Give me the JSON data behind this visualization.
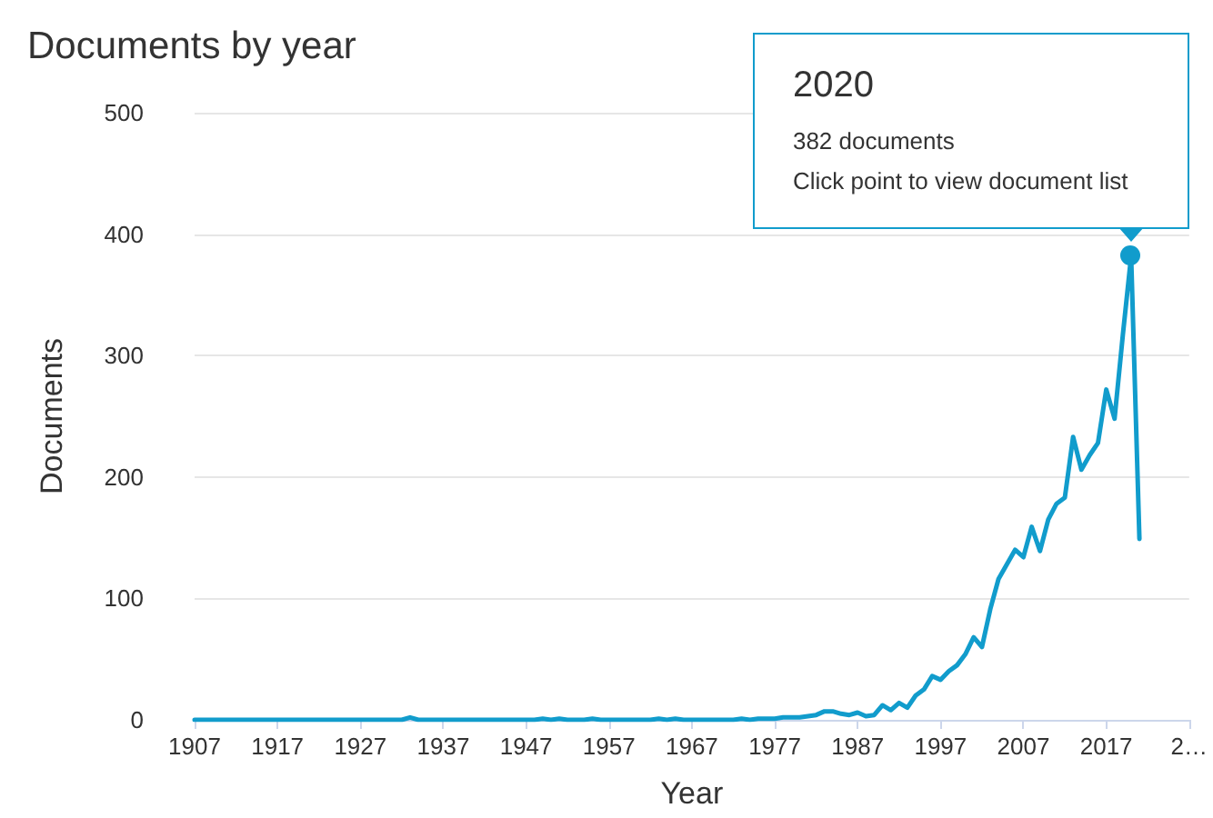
{
  "chart_data": {
    "type": "line",
    "title": "Documents by year",
    "xlabel": "Year",
    "ylabel": "Documents",
    "x": [
      1907,
      1908,
      1909,
      1910,
      1911,
      1912,
      1913,
      1914,
      1915,
      1916,
      1917,
      1918,
      1919,
      1920,
      1921,
      1922,
      1923,
      1924,
      1925,
      1926,
      1927,
      1928,
      1929,
      1930,
      1931,
      1932,
      1933,
      1934,
      1935,
      1936,
      1937,
      1938,
      1939,
      1940,
      1941,
      1942,
      1943,
      1944,
      1945,
      1946,
      1947,
      1948,
      1949,
      1950,
      1951,
      1952,
      1953,
      1954,
      1955,
      1956,
      1957,
      1958,
      1959,
      1960,
      1961,
      1962,
      1963,
      1964,
      1965,
      1966,
      1967,
      1968,
      1969,
      1970,
      1971,
      1972,
      1973,
      1974,
      1975,
      1976,
      1977,
      1978,
      1979,
      1980,
      1981,
      1982,
      1983,
      1984,
      1985,
      1986,
      1987,
      1988,
      1989,
      1990,
      1991,
      1992,
      1993,
      1994,
      1995,
      1996,
      1997,
      1998,
      1999,
      2000,
      2001,
      2002,
      2003,
      2004,
      2005,
      2006,
      2007,
      2008,
      2009,
      2010,
      2011,
      2012,
      2013,
      2014,
      2015,
      2016,
      2017,
      2018,
      2019,
      2020,
      2021
    ],
    "series": [
      {
        "color": "#119ccc",
        "values": [
          0,
          0,
          0,
          0,
          0,
          0,
          0,
          0,
          0,
          0,
          0,
          0,
          0,
          0,
          0,
          0,
          0,
          0,
          0,
          0,
          0,
          0,
          0,
          0,
          0,
          0,
          2,
          0,
          0,
          0,
          0,
          0,
          0,
          0,
          0,
          0,
          0,
          0,
          0,
          0,
          0,
          0,
          1,
          0,
          1,
          0,
          0,
          0,
          1,
          0,
          0,
          0,
          0,
          0,
          0,
          0,
          1,
          0,
          1,
          0,
          0,
          0,
          0,
          0,
          0,
          0,
          1,
          0,
          1,
          1,
          1,
          2,
          2,
          2,
          3,
          4,
          7,
          7,
          5,
          4,
          6,
          3,
          4,
          12,
          8,
          14,
          10,
          20,
          25,
          36,
          33,
          40,
          45,
          54,
          68,
          60,
          91,
          116,
          128,
          140,
          134,
          159,
          139,
          165,
          178,
          183,
          233,
          206,
          218,
          228,
          272,
          248,
          317,
          382,
          149
        ]
      }
    ],
    "xlim": [
      1907,
      2027
    ],
    "xticks": [
      1907,
      1917,
      1927,
      1937,
      1947,
      1957,
      1967,
      1977,
      1987,
      1997,
      2007,
      2017,
      {
        "value": 2027,
        "label": "2…"
      }
    ],
    "ylim": [
      0,
      500
    ],
    "yticks": [
      0,
      100,
      200,
      300,
      400,
      500
    ],
    "grid": "y",
    "marker": "none",
    "line_style": "solid",
    "annotations": [
      "2020",
      "382 documents",
      "Click point to view document list"
    ]
  }
}
